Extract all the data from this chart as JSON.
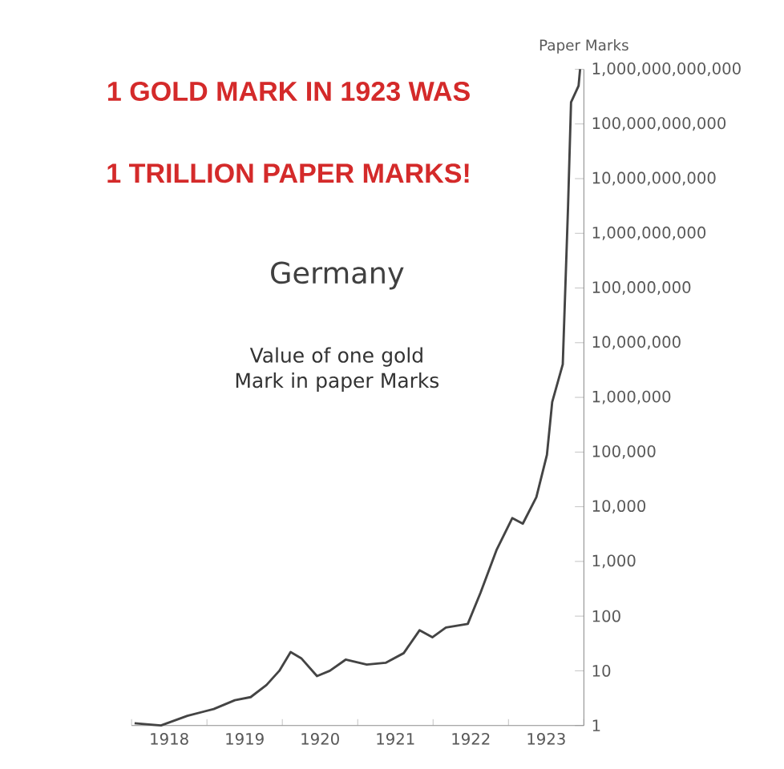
{
  "chart_data": {
    "type": "line",
    "title": "Germany",
    "subtitle": "Value of one gold Mark in paper Marks",
    "ylabel": "Paper Marks",
    "annotations": [
      "1 GOLD MARK IN 1923 WAS",
      "1 TRILLION PAPER MARKS!"
    ],
    "log": "y",
    "grid": false,
    "marker": "none",
    "line_style": "solid",
    "xlim": [
      1918,
      1924
    ],
    "xticks": [
      {
        "value": 1918,
        "label": null
      },
      {
        "value": 1918.5,
        "label": "1918"
      },
      {
        "value": 1919,
        "label": null
      },
      {
        "value": 1919.5,
        "label": "1919"
      },
      {
        "value": 1920,
        "label": null
      },
      {
        "value": 1920.5,
        "label": "1920"
      },
      {
        "value": 1921,
        "label": null
      },
      {
        "value": 1921.5,
        "label": "1921"
      },
      {
        "value": 1922,
        "label": null
      },
      {
        "value": 1922.5,
        "label": "1922"
      },
      {
        "value": 1923,
        "label": null
      },
      {
        "value": 1923.5,
        "label": "1923"
      },
      {
        "value": 1924,
        "label": null
      }
    ],
    "ylim": [
      1,
      1000000000000
    ],
    "yticks": [
      {
        "value": 1,
        "label": "1"
      },
      {
        "value": 10,
        "label": "10"
      },
      {
        "value": 100,
        "label": "100"
      },
      {
        "value": 1000,
        "label": "1,000"
      },
      {
        "value": 10000,
        "label": "10,000"
      },
      {
        "value": 100000,
        "label": "100,000"
      },
      {
        "value": 1000000,
        "label": "1,000,000"
      },
      {
        "value": 10000000,
        "label": "10,000,000"
      },
      {
        "value": 100000000,
        "label": "100,000,000"
      },
      {
        "value": 1000000000,
        "label": "1,000,000,000"
      },
      {
        "value": 10000000000,
        "label": "10,000,000,000"
      },
      {
        "value": 100000000000,
        "label": "100,000,000,000"
      },
      {
        "value": 1000000000000,
        "label": "1,000,000,000,000"
      }
    ],
    "series": [
      {
        "color": "#444444",
        "x": [
          1918.04,
          1918.39,
          1918.74,
          1919.09,
          1919.37,
          1919.58,
          1919.79,
          1919.96,
          1920.11,
          1920.25,
          1920.46,
          1920.63,
          1920.84,
          1921.12,
          1921.37,
          1921.61,
          1921.82,
          1921.99,
          1922.17,
          1922.46,
          1922.63,
          1922.84,
          1923.05,
          1923.19,
          1923.37,
          1923.51,
          1923.58,
          1923.72,
          1923.79,
          1923.83,
          1923.93,
          1923.95
        ],
        "values": [
          1.1,
          1.0,
          1.5,
          2,
          2.9,
          3.3,
          5.5,
          10,
          22,
          17,
          8,
          10,
          16,
          13,
          14,
          21,
          55,
          41,
          62,
          72,
          270,
          1600,
          6200,
          4900,
          15000,
          89000,
          820000,
          4000000,
          3000000000,
          250000000000,
          500000000000,
          1000000000000
        ]
      }
    ]
  }
}
